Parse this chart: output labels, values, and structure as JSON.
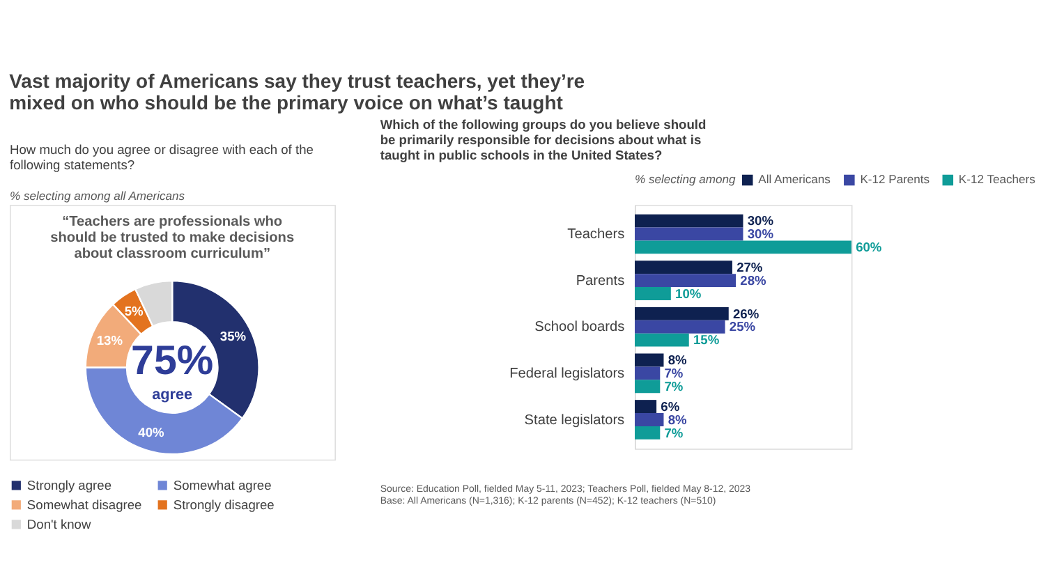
{
  "chart_data": [
    {
      "type": "donut",
      "title": "Vast majority of Americans say they trust teachers, yet they’re\nmixed on who should be the primary voice on what’s taught",
      "subtitle": "How much do you agree or disagree with each of the\nfollowing statements?",
      "annotations": [
        "% selecting among all Americans",
        "“Teachers are professionals who\nshould be trusted to make decisions\nabout classroom curriculum”",
        "75%",
        "agree"
      ],
      "categories": [
        "Strongly agree",
        "Somewhat agree",
        "Somewhat disagree",
        "Strongly disagree",
        "Don't know"
      ],
      "values": [
        35,
        40,
        13,
        5,
        7
      ],
      "colors": [
        "#22306e",
        "#6f86d6",
        "#f2ab7a",
        "#e3731f",
        "#d9d9d9"
      ],
      "value_labels": [
        "35%",
        "40%",
        "13%",
        "5%",
        null
      ],
      "legend": "bottom"
    },
    {
      "type": "bar",
      "orientation": "horizontal",
      "title": "Which of the following groups do you believe should\nbe primarily responsible for decisions about what is\ntaught in public schools in the United States?",
      "legend_title": "% selecting among",
      "legend": "top",
      "categories": [
        "Teachers",
        "Parents",
        "School boards",
        "Federal legislators",
        "State legislators"
      ],
      "series": [
        {
          "name": "All Americans",
          "color": "#0e2150",
          "values": [
            30,
            27,
            26,
            8,
            6
          ],
          "value_labels": [
            "30%",
            "27%",
            "26%",
            "8%",
            "6%"
          ]
        },
        {
          "name": "K-12 Parents",
          "color": "#3a47a3",
          "values": [
            30,
            28,
            25,
            7,
            8
          ],
          "value_labels": [
            "30%",
            "28%",
            "25%",
            "7%",
            "8%"
          ]
        },
        {
          "name": "K-12 Teachers",
          "color": "#0f9c98",
          "values": [
            60,
            10,
            15,
            7,
            7
          ],
          "value_labels": [
            "60%",
            "10%",
            "15%",
            "7%",
            "7%"
          ]
        }
      ],
      "annotations": [
        "Source: Education Poll, fielded May 5-11, 2023; Teachers Poll, fielded May 8-12, 2023",
        "Base: All Americans (N=1,316); K-12 parents (N=452); K-12 teachers (N=510)"
      ]
    }
  ]
}
